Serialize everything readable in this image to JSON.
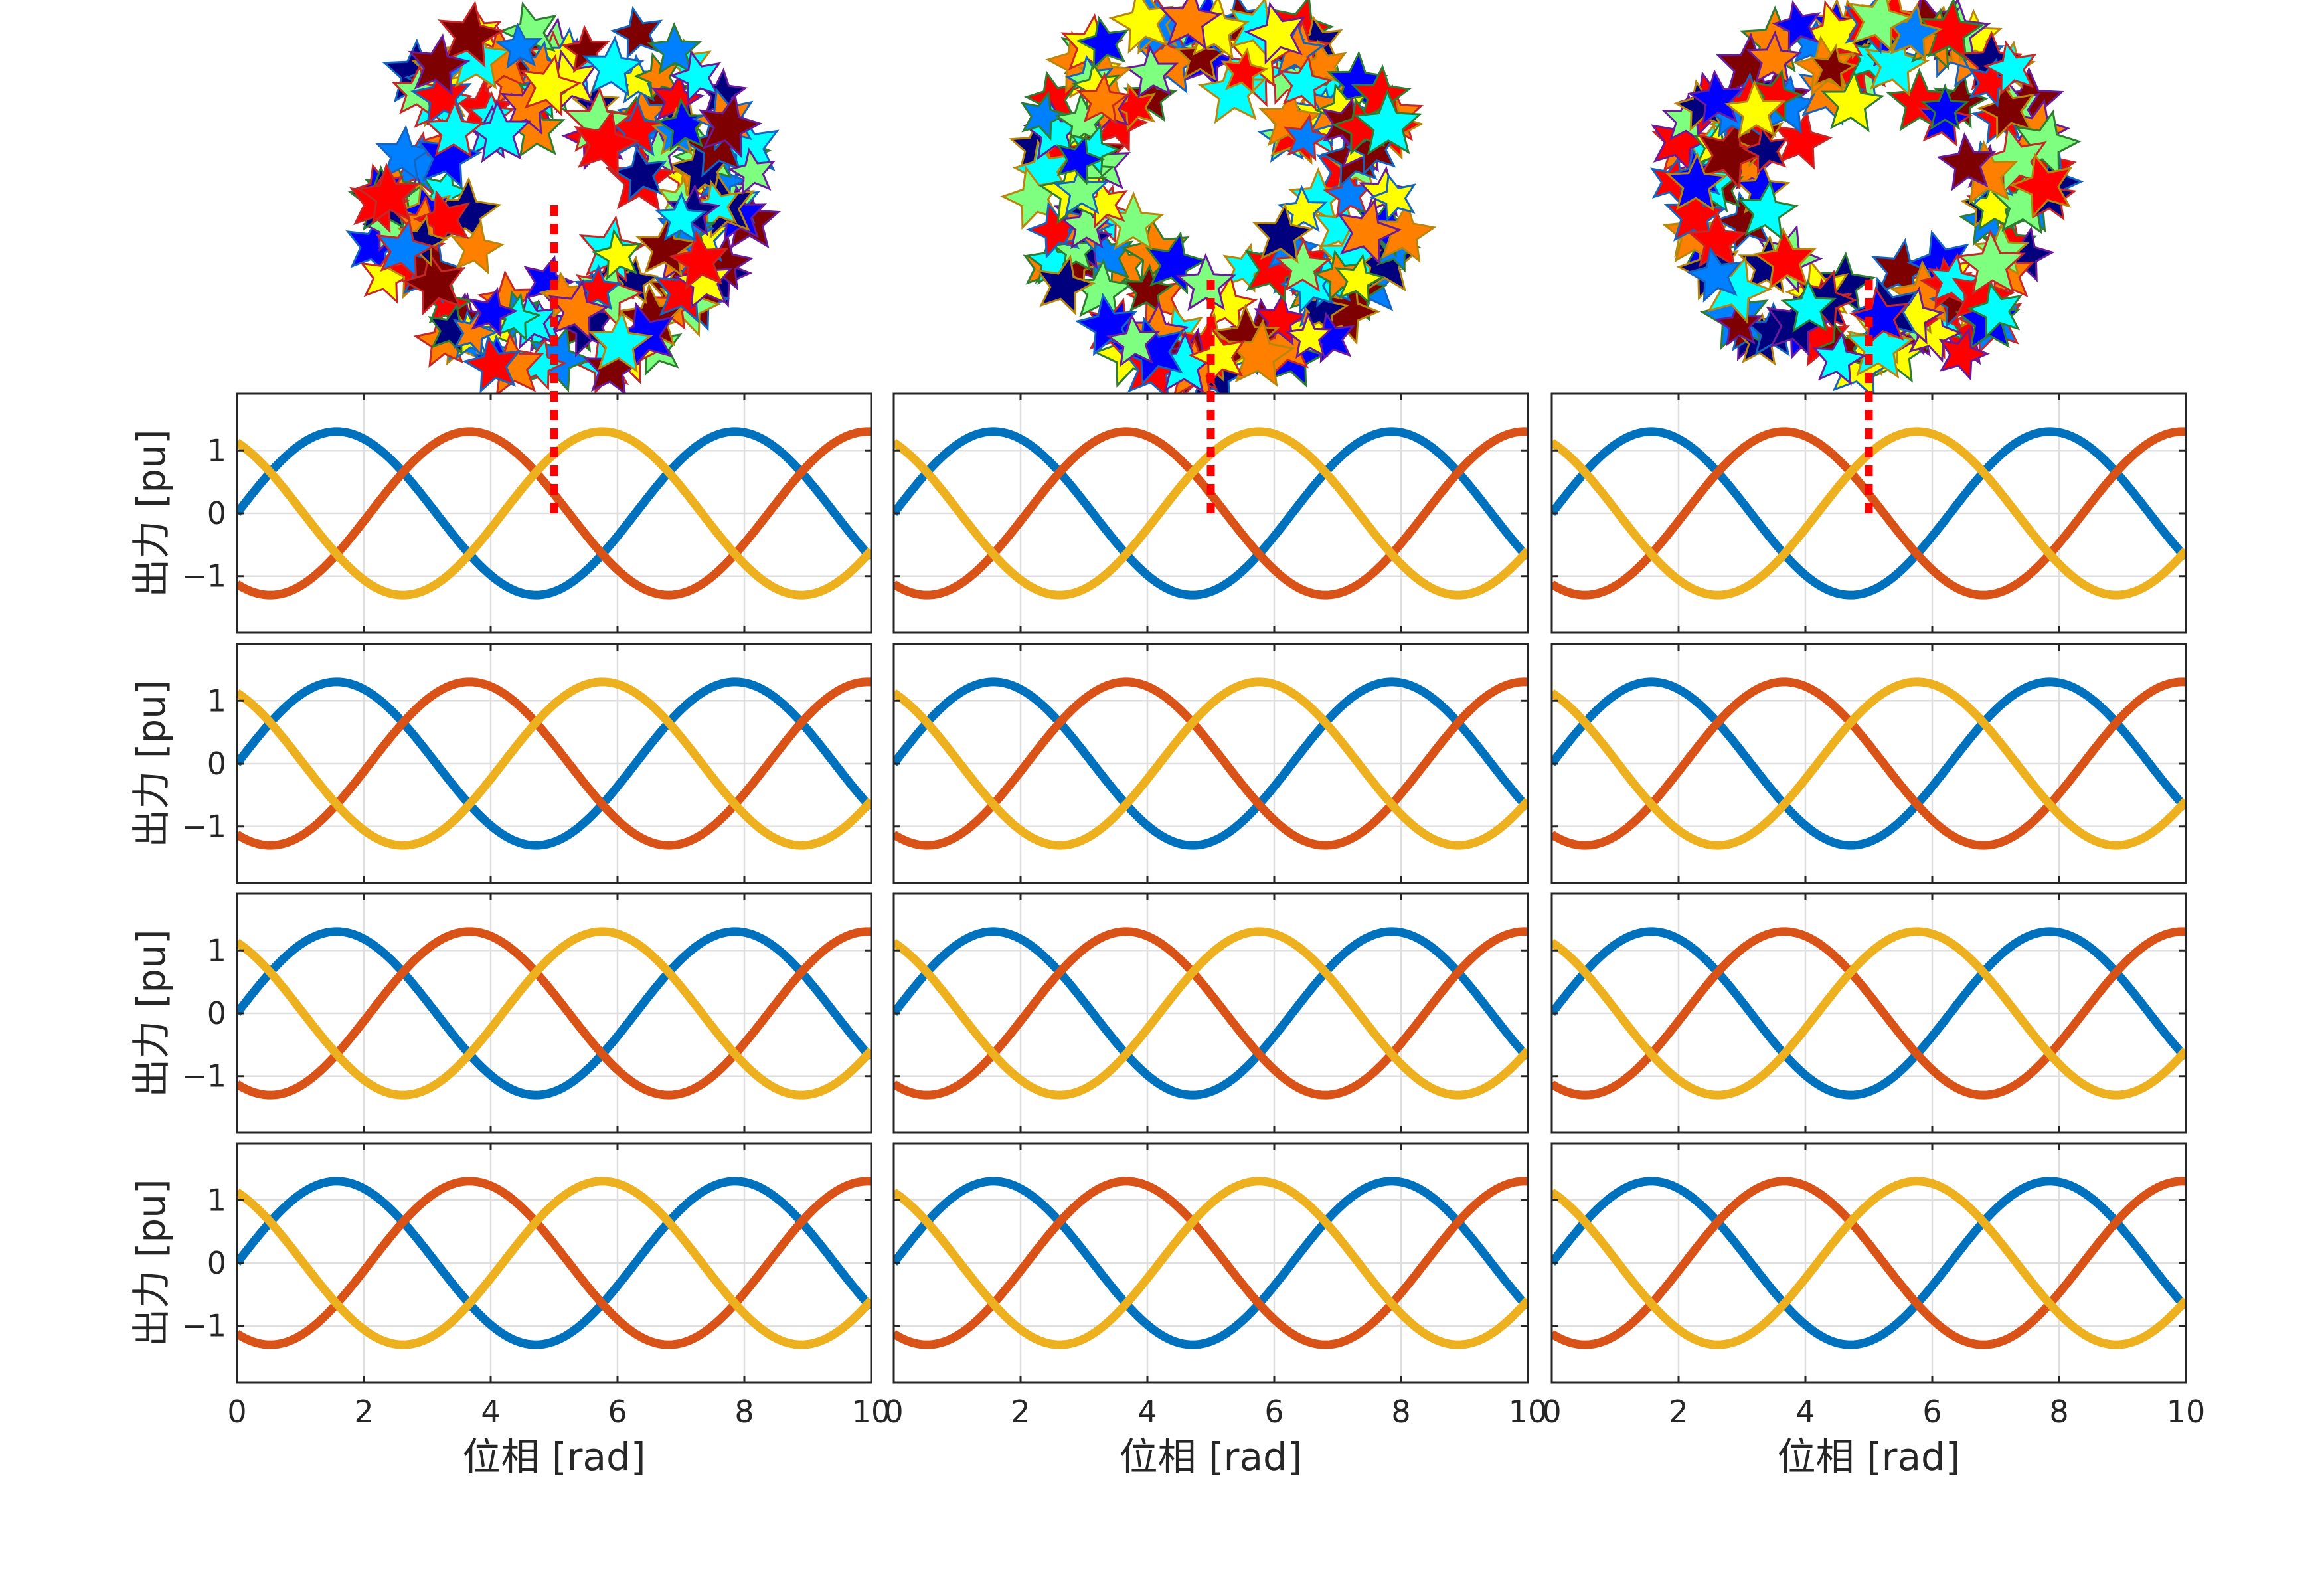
{
  "colors": {
    "series": [
      "#0072BD",
      "#D95319",
      "#EDB120"
    ],
    "marker_line": "#FF0000",
    "grid": "#DFDFDF",
    "axes": "#262626",
    "star_palette": [
      "#00007F",
      "#0000FF",
      "#007FFF",
      "#00FFFF",
      "#7FFF7F",
      "#FFFF00",
      "#FF7F00",
      "#FF0000",
      "#7F0000"
    ]
  },
  "layout": {
    "rows": 4,
    "cols": 3
  },
  "chart_data": {
    "type": "line",
    "function": "amplitude * sin(x + phase)",
    "amplitude": 1.3,
    "x_range": [
      0,
      10
    ],
    "ylim": [
      -1.9,
      1.9
    ],
    "xticks": [
      0,
      2,
      4,
      6,
      8,
      10
    ],
    "yticks": [
      -1,
      0,
      1
    ],
    "xtick_labels": [
      "0",
      "2",
      "4",
      "6",
      "8",
      "10"
    ],
    "ytick_labels": [
      "−1",
      "0",
      "1"
    ],
    "xlabel": "位相 [rad]",
    "ylabel": "出力 [pu]",
    "grid": true,
    "series": [
      {
        "phase_rad": 0
      },
      {
        "phase_rad": -2.0944
      },
      {
        "phase_rad": 2.0944
      }
    ],
    "marker": {
      "x": 5.0,
      "y_from": 0,
      "style": "dotted",
      "rows": [
        0
      ]
    },
    "star_clusters": {
      "count_per_column": 3,
      "stars_each": 160,
      "shape": "ring"
    }
  }
}
